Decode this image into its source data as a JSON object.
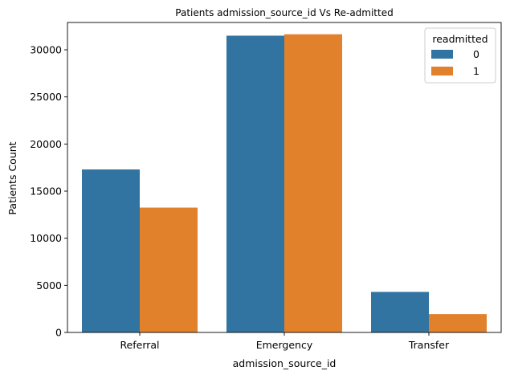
{
  "chart_data": {
    "type": "bar",
    "title": "Patients admission_source_id Vs Re-admitted",
    "xlabel": "admission_source_id",
    "ylabel": "Patients Count",
    "categories": [
      "Referral",
      "Emergency",
      "Transfer"
    ],
    "series": [
      {
        "name": "0",
        "values": [
          17300,
          31500,
          4300
        ],
        "color": "#3274a1"
      },
      {
        "name": "1",
        "values": [
          13250,
          31650,
          1950
        ],
        "color": "#e1812c"
      }
    ],
    "ylim": [
      0,
      32900
    ],
    "yticks": [
      0,
      5000,
      10000,
      15000,
      20000,
      25000,
      30000
    ],
    "legend": {
      "title": "readmitted",
      "placement": "top-right"
    },
    "grid": false
  }
}
